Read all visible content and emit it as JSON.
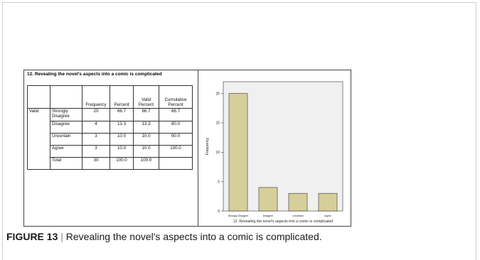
{
  "figure": {
    "table_title": "12. Revealing the novel's aspects into a comic is complicated",
    "table": {
      "headers": [
        "",
        "",
        "Frequency",
        "Percent",
        "Valid Percent",
        "Cumulative Percent"
      ],
      "group_label": "Valid",
      "rows": [
        {
          "label": "Strongly Disagree",
          "frequency": "20",
          "percent": "66.7",
          "valid_percent": "66.7",
          "cumulative_percent": "66.7"
        },
        {
          "label": "Disagree",
          "frequency": "4",
          "percent": "13.3",
          "valid_percent": "13.3",
          "cumulative_percent": "80.0"
        },
        {
          "label": "Uncertain",
          "frequency": "3",
          "percent": "10.0",
          "valid_percent": "10.0",
          "cumulative_percent": "90.0"
        },
        {
          "label": "Agree",
          "frequency": "3",
          "percent": "10.0",
          "valid_percent": "10.0",
          "cumulative_percent": "100.0"
        },
        {
          "label": "Total",
          "frequency": "30",
          "percent": "100.0",
          "valid_percent": "100.0",
          "cumulative_percent": ""
        }
      ]
    },
    "caption": {
      "label": "FIGURE 13",
      "separator": "|",
      "text": "Revealing the novel's aspects into a comic is complicated."
    }
  },
  "chart_data": {
    "type": "bar",
    "categories": [
      "Strongly Disagree",
      "Disagree",
      "Uncertain",
      "Agree"
    ],
    "values": [
      20,
      4,
      3,
      3
    ],
    "xlabel": "12. Revealing the novel's aspects into a comic is complicated",
    "ylabel": "Frequency",
    "ylim": [
      0,
      22
    ],
    "yticks": [
      0,
      5,
      10,
      15,
      20
    ],
    "bar_color": "#d6cf9a",
    "plot_bg": "#f0f0f0",
    "grid": false
  }
}
